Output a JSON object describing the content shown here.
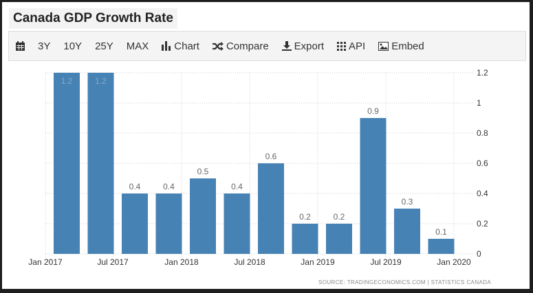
{
  "title": "Canada GDP Growth Rate",
  "toolbar": {
    "calendar_icon": "calendar-icon",
    "buttons": [
      "3Y",
      "10Y",
      "25Y",
      "MAX"
    ],
    "chart": "Chart",
    "compare": "Compare",
    "export": "Export",
    "api": "API",
    "embed": "Embed"
  },
  "source": "SOURCE:  TRADINGECONOMICS.COM  |  STATISTICS CANADA",
  "chart_data": {
    "type": "bar",
    "categories": [
      "Q1 2017",
      "Q2 2017",
      "Q3 2017",
      "Q4 2017",
      "Q1 2018",
      "Q2 2018",
      "Q3 2018",
      "Q4 2018",
      "Q1 2019",
      "Q2 2019",
      "Q3 2019",
      "Q4 2019"
    ],
    "values": [
      1.2,
      1.2,
      0.4,
      0.4,
      0.5,
      0.4,
      0.6,
      0.2,
      0.2,
      0.9,
      0.3,
      0.1
    ],
    "value_labels": [
      "1.2",
      "1.2",
      "0.4",
      "0.4",
      "0.5",
      "0.4",
      "0.6",
      "0.2",
      "0.2",
      "0.9",
      "0.3",
      "0.1"
    ],
    "x_tick_labels": [
      "Jan 2017",
      "Jul 2017",
      "Jan 2018",
      "Jul 2018",
      "Jan 2019",
      "Jul 2019",
      "Jan 2020"
    ],
    "y_tick_labels": [
      "0",
      "0.2",
      "0.4",
      "0.6",
      "0.8",
      "1",
      "1.2"
    ],
    "y_ticks": [
      0,
      0.2,
      0.4,
      0.6,
      0.8,
      1,
      1.2
    ],
    "ylim": [
      0,
      1.2
    ],
    "y_axis_side": "right",
    "grid": true,
    "bar_color": "#4682b4"
  }
}
